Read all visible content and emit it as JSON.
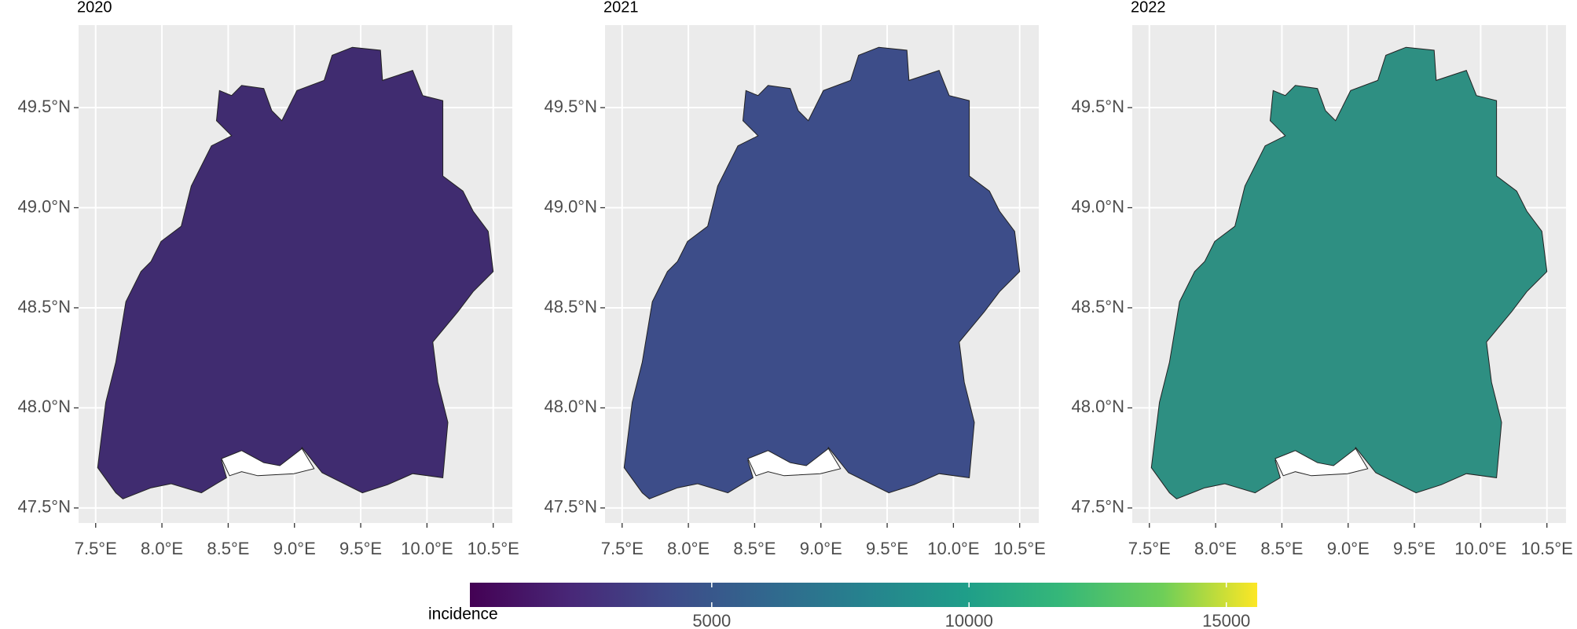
{
  "panels": [
    {
      "title": "2020",
      "fill": "#402c70"
    },
    {
      "title": "2021",
      "fill": "#3d4d89"
    },
    {
      "title": "2022",
      "fill": "#2e8f82"
    }
  ],
  "xlim": [
    7.371,
    10.644
  ],
  "ylim": [
    47.425,
    49.912
  ],
  "xticks": [
    {
      "value": 7.5,
      "label": "7.5°E"
    },
    {
      "value": 8.0,
      "label": "8.0°E"
    },
    {
      "value": 8.5,
      "label": "8.5°E"
    },
    {
      "value": 9.0,
      "label": "9.0°E"
    },
    {
      "value": 9.5,
      "label": "9.5°E"
    },
    {
      "value": 10.0,
      "label": "10.0°E"
    },
    {
      "value": 10.5,
      "label": "10.5°E"
    }
  ],
  "yticks": [
    {
      "value": 47.5,
      "label": "47.5°N"
    },
    {
      "value": 48.0,
      "label": "48.0°N"
    },
    {
      "value": 48.5,
      "label": "48.5°N"
    },
    {
      "value": 49.0,
      "label": "49.0°N"
    },
    {
      "value": 49.5,
      "label": "49.5°N"
    }
  ],
  "legend": {
    "title": "incidence",
    "lim": [
      300,
      15600
    ],
    "ticks": [
      5000,
      10000,
      15000
    ]
  }
}
